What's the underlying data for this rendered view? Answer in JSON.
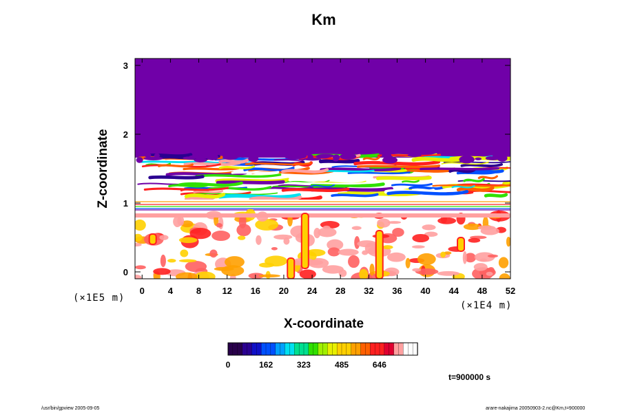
{
  "chart_data": {
    "type": "heatmap",
    "title": "Km",
    "xlabel": "X-coordinate",
    "ylabel": "Z-coordinate",
    "x_ticks": [
      "0",
      "4",
      "8",
      "12",
      "16",
      "20",
      "24",
      "28",
      "32",
      "36",
      "40",
      "44",
      "48",
      "52"
    ],
    "y_ticks": [
      "0",
      "1",
      "2",
      "3"
    ],
    "x_scale_label": "(×1E4 m)",
    "y_scale_label": "(×1E5 m)",
    "xlim": [
      -1,
      52
    ],
    "ylim": [
      -0.1,
      3.1
    ],
    "colorbar": {
      "tick_labels": [
        "0",
        "162",
        "323",
        "485",
        "646"
      ],
      "range": [
        0,
        808
      ],
      "colors": [
        "#28004a",
        "#2a0090",
        "#1010c8",
        "#0050ff",
        "#00a0ff",
        "#00e0f0",
        "#00e090",
        "#30e000",
        "#a0f000",
        "#e8f000",
        "#ffd000",
        "#ffa000",
        "#ff6000",
        "#ff2020",
        "#e00030",
        "#ffa0a0",
        "#ffffff"
      ]
    },
    "field_regions": [
      {
        "name": "upper-uniform-layer",
        "z_range": [
          1.7,
          3.1
        ],
        "value": 0
      },
      {
        "name": "turbulent-band",
        "z_range": [
          1.05,
          1.7
        ]
      },
      {
        "name": "stable-gap",
        "z_range": [
          0.88,
          1.05
        ]
      },
      {
        "name": "lower-layer",
        "z_range": [
          -0.1,
          0.88
        ]
      }
    ],
    "time_label": "t=900000 s"
  },
  "footer": {
    "left": "/usr/bin/gpview 2005-09-05",
    "right": "arare-nakajima 20050903-2.nc@Km,t=900000"
  }
}
